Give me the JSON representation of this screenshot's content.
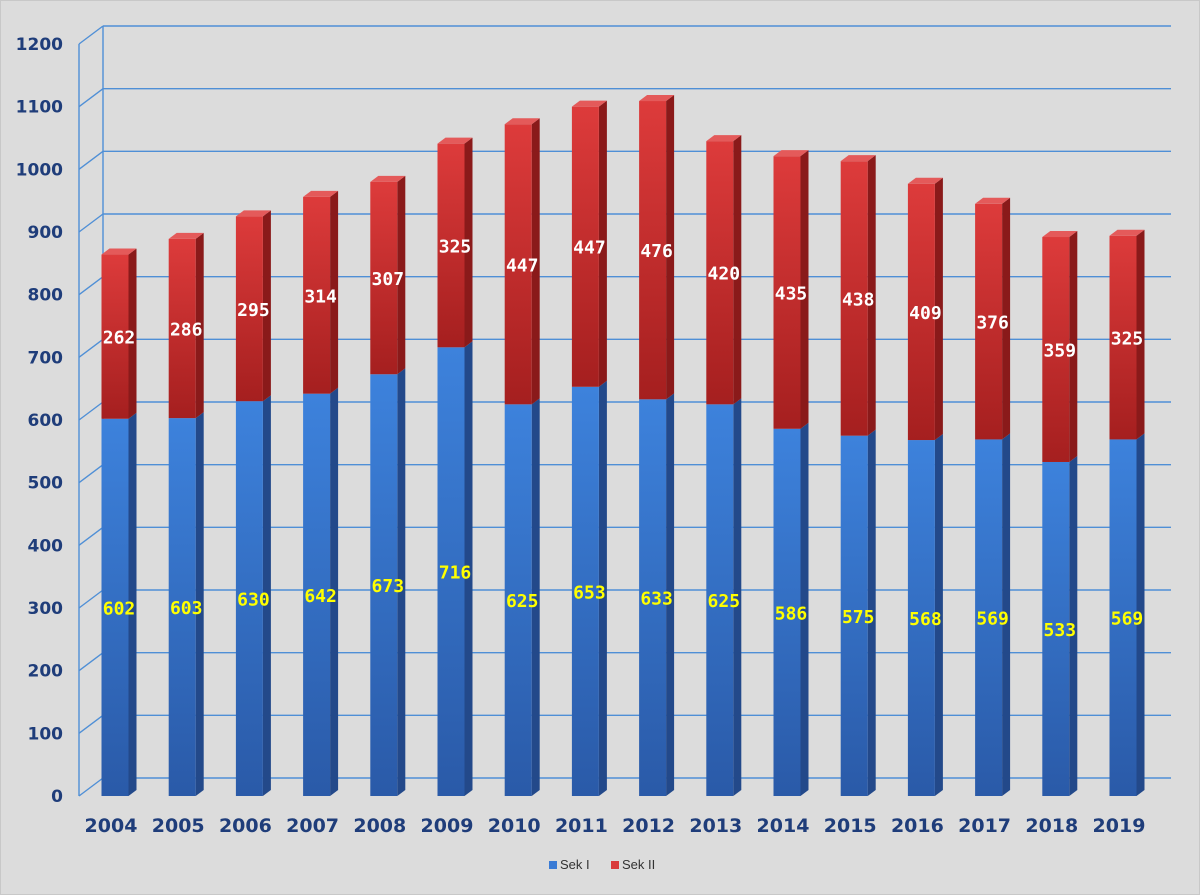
{
  "chart_data": {
    "type": "bar",
    "stacked": true,
    "categories": [
      "2004",
      "2005",
      "2006",
      "2007",
      "2008",
      "2009",
      "2010",
      "2011",
      "2012",
      "2013",
      "2014",
      "2015",
      "2016",
      "2017",
      "2018",
      "2019"
    ],
    "series": [
      {
        "name": "Sek I",
        "color": "#3a7bd5",
        "label_color": "#ffff00",
        "values": [
          602,
          603,
          630,
          642,
          673,
          716,
          625,
          653,
          633,
          625,
          586,
          575,
          568,
          569,
          533,
          569
        ]
      },
      {
        "name": "Sek II",
        "color": "#d93a3a",
        "label_color": "#ffffff",
        "values": [
          262,
          286,
          295,
          314,
          307,
          325,
          447,
          447,
          476,
          420,
          435,
          438,
          409,
          376,
          359,
          325
        ]
      }
    ],
    "ylim": [
      0,
      1200
    ],
    "yticks": [
      0,
      100,
      200,
      300,
      400,
      500,
      600,
      700,
      800,
      900,
      1000,
      1100,
      1200
    ],
    "grid": true,
    "legend": "bottom-center"
  }
}
